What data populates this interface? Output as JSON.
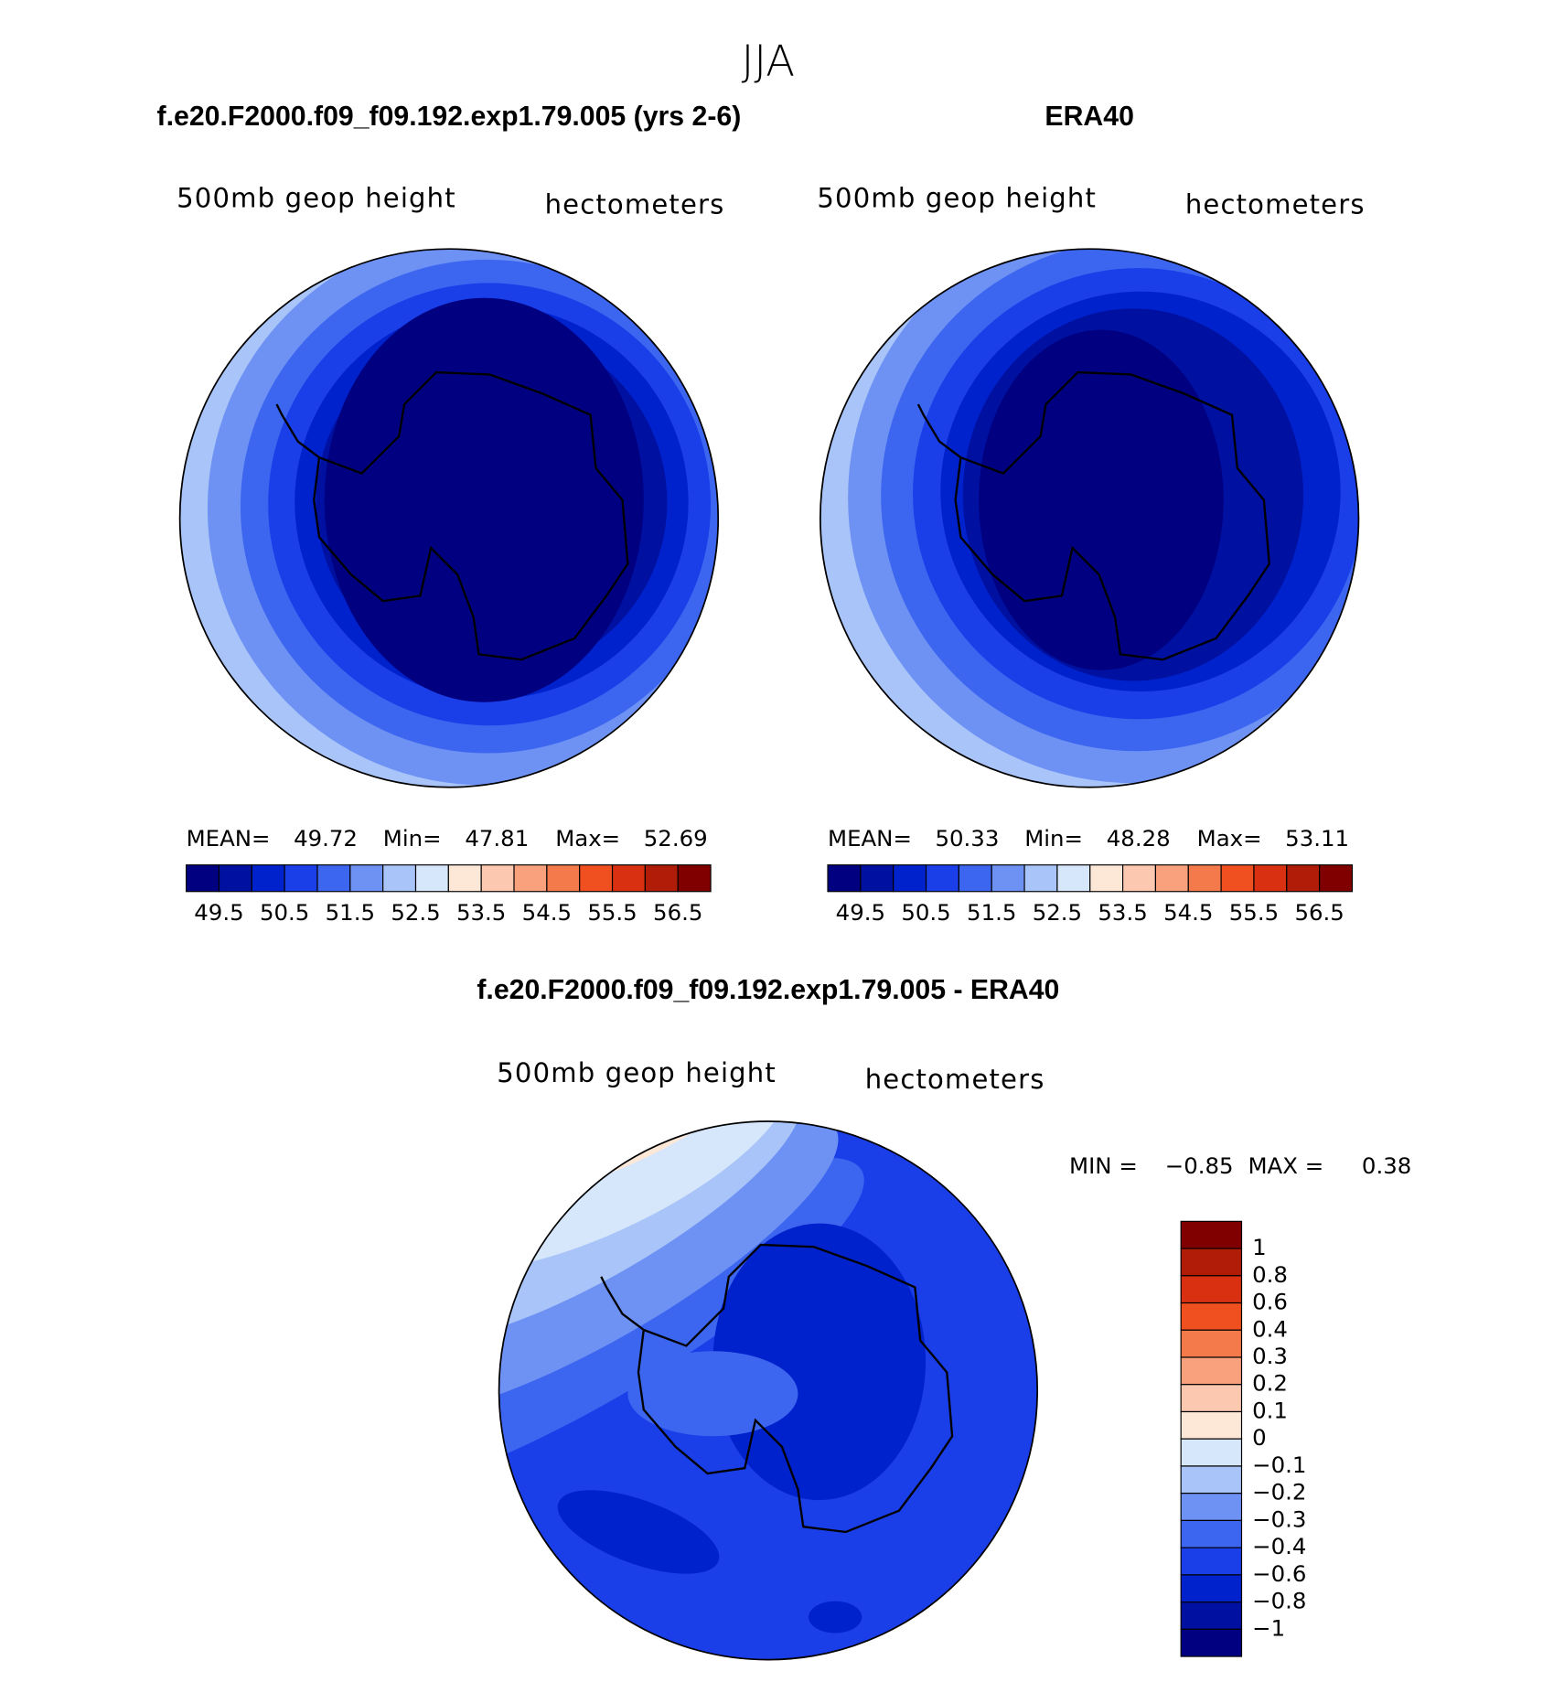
{
  "title": "JJA",
  "panels": [
    {
      "title": "f.e20.F2000.f09_f09.192.exp1.79.005 (yrs 2-6)",
      "left_label": "500mb  geop  height",
      "right_label": "hectometers",
      "stats": [
        "MEAN=",
        "49.72",
        "Min=",
        "47.81",
        "Max=",
        "52.69"
      ],
      "colorbar": {
        "labels": [
          "49.5",
          "50.5",
          "51.5",
          "52.5",
          "53.5",
          "54.5",
          "55.5",
          "56.5"
        ],
        "colors": [
          "#000080",
          "#0010a0",
          "#0022cc",
          "#1a3ee8",
          "#3d66f0",
          "#6e92f4",
          "#a9c4f8",
          "#d6e6fb",
          "#fde8d8",
          "#fcc8b0",
          "#f9a07c",
          "#f47a4c",
          "#f05020",
          "#d83010",
          "#b01c08",
          "#800000"
        ]
      }
    },
    {
      "title": "ERA40",
      "left_label": "500mb  geop  height",
      "right_label": "hectometers",
      "stats": [
        "MEAN=",
        "50.33",
        "Min=",
        "48.28",
        "Max=",
        "53.11"
      ],
      "colorbar": {
        "labels": [
          "49.5",
          "50.5",
          "51.5",
          "52.5",
          "53.5",
          "54.5",
          "55.5",
          "56.5"
        ],
        "colors": [
          "#000080",
          "#0010a0",
          "#0022cc",
          "#1a3ee8",
          "#3d66f0",
          "#6e92f4",
          "#a9c4f8",
          "#d6e6fb",
          "#fde8d8",
          "#fcc8b0",
          "#f9a07c",
          "#f47a4c",
          "#f05020",
          "#d83010",
          "#b01c08",
          "#800000"
        ]
      }
    }
  ],
  "difference": {
    "title": "f.e20.F2000.f09_f09.192.exp1.79.005 - ERA40",
    "left_label": "500mb  geop  height",
    "right_label": "hectometers",
    "stats": [
      "MIN =",
      "−0.85",
      "MAX =",
      "0.38"
    ],
    "colorbar": {
      "labels": [
        "1",
        "0.8",
        "0.6",
        "0.4",
        "0.3",
        "0.2",
        "0.1",
        "0",
        "−0.1",
        "−0.2",
        "−0.3",
        "−0.4",
        "−0.6",
        "−0.8",
        "−1"
      ],
      "colors": [
        "#800000",
        "#b01c08",
        "#d83010",
        "#f05020",
        "#f47a4c",
        "#f9a07c",
        "#fcc8b0",
        "#fde8d8",
        "#d6e6fb",
        "#a9c4f8",
        "#6e92f4",
        "#3d66f0",
        "#1a3ee8",
        "#0022cc",
        "#0010a0",
        "#000080"
      ]
    }
  }
}
